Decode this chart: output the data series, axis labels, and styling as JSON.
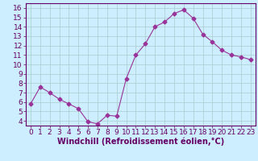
{
  "x": [
    0,
    1,
    2,
    3,
    4,
    5,
    6,
    7,
    8,
    9,
    10,
    11,
    12,
    13,
    14,
    15,
    16,
    17,
    18,
    19,
    20,
    21,
    22,
    23
  ],
  "y": [
    5.8,
    7.6,
    7.0,
    6.3,
    5.8,
    5.3,
    3.9,
    3.7,
    4.6,
    4.5,
    8.5,
    11.0,
    12.2,
    14.0,
    14.5,
    15.4,
    15.8,
    14.9,
    13.2,
    12.4,
    11.5,
    11.0,
    10.8,
    10.5
  ],
  "line_color": "#993399",
  "marker": "D",
  "marker_size": 2.5,
  "bg_color": "#cceeff",
  "grid_color": "#aacccc",
  "xlabel": "Windchill (Refroidissement éolien,°C)",
  "ylabel": "",
  "ylim": [
    3.5,
    16.5
  ],
  "xlim": [
    -0.5,
    23.5
  ],
  "yticks": [
    4,
    5,
    6,
    7,
    8,
    9,
    10,
    11,
    12,
    13,
    14,
    15,
    16
  ],
  "xticks": [
    0,
    1,
    2,
    3,
    4,
    5,
    6,
    7,
    8,
    9,
    10,
    11,
    12,
    13,
    14,
    15,
    16,
    17,
    18,
    19,
    20,
    21,
    22,
    23
  ],
  "tick_color": "#660066",
  "label_color": "#660066",
  "axis_color": "#660066",
  "font_size": 6.5,
  "xlabel_fontsize": 7.0
}
